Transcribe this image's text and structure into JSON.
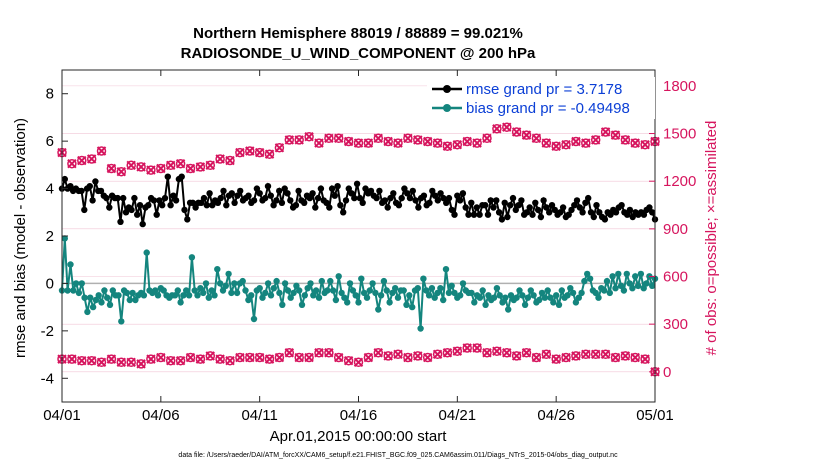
{
  "chart_data": {
    "type": "line",
    "title": "Northern Hemisphere 88019 / 88889 = 99.021%",
    "subtitle": "RADIOSONDE_U_WIND_COMPONENT @ 200 hPa",
    "xlabel": "Apr.01,2015 00:00:00 start",
    "ylabel": "rmse and bias (model - observation)",
    "y2label": "# of obs: o=possible; ×=assimilated",
    "footnote": "data file: /Users/raeder/DAI/ATM_forcXX/CAM6_setup/f.e21.FHIST_BGC.f09_025.CAM6assim.011/Diags_NTrS_2015-04/obs_diag_output.nc",
    "xlim": [
      0,
      30
    ],
    "ylim": [
      -5,
      9
    ],
    "y2lim": [
      -190,
      1900
    ],
    "x_ticks": [
      0,
      5,
      10,
      15,
      20,
      25,
      30
    ],
    "x_tick_labels": [
      "04/01",
      "04/06",
      "04/11",
      "04/16",
      "04/21",
      "04/26",
      "05/01"
    ],
    "y_ticks": [
      -4,
      -2,
      0,
      2,
      4,
      6,
      8
    ],
    "y_tick_labels": [
      "-4",
      "-2",
      "0",
      "2",
      "4",
      "6",
      "8"
    ],
    "y2_ticks": [
      0,
      300,
      600,
      900,
      1200,
      1500,
      1800
    ],
    "y2_tick_labels": [
      "0",
      "300",
      "600",
      "900",
      "1200",
      "1500",
      "1800"
    ],
    "legend": [
      "rmse grand pr = 3.7178",
      "bias grand pr = -0.49498"
    ],
    "legend_position": "top-right",
    "colors": {
      "rmse": "#000000",
      "bias": "#14857e",
      "count": "#d6155e",
      "zero_line": "#b0b0b0"
    },
    "series": [
      {
        "name": "rmse",
        "axis": "left",
        "y_start": 0,
        "y_step": 0.25,
        "values": [
          4.0,
          4.4,
          4.0,
          4.1,
          3.9,
          4.0,
          3.9,
          3.9,
          3.1,
          4.0,
          4.1,
          3.5,
          4.3,
          3.9,
          3.9,
          3.7,
          3.6,
          3.2,
          3.7,
          3.6,
          3.6,
          2.6,
          3.6,
          3.0,
          3.2,
          3.1,
          3.6,
          2.9,
          3.3,
          2.5,
          3.2,
          3.3,
          3.6,
          3.5,
          2.9,
          3.5,
          3.3,
          3.6,
          4.5,
          3.3,
          3.7,
          3.5,
          4.4,
          4.5,
          3.1,
          2.7,
          3.4,
          3.4,
          3.2,
          3.4,
          3.4,
          3.6,
          3.3,
          3.8,
          3.3,
          3.5,
          3.4,
          3.6,
          3.9,
          3.3,
          3.7,
          3.8,
          3.4,
          3.7,
          3.9,
          3.5,
          3.6,
          3.7,
          3.4,
          3.5,
          4.0,
          3.8,
          3.5,
          3.6,
          4.1,
          3.7,
          3.3,
          3.5,
          3.9,
          3.4,
          4.0,
          3.8,
          3.5,
          3.2,
          3.3,
          3.9,
          3.5,
          3.4,
          3.7,
          3.6,
          3.8,
          3.2,
          3.6,
          4.0,
          3.5,
          3.4,
          3.2,
          4.0,
          3.7,
          4.1,
          3.3,
          3.0,
          3.5,
          4.0,
          3.8,
          3.6,
          4.2,
          3.6,
          3.4,
          4.0,
          3.8,
          3.9,
          3.7,
          3.6,
          3.9,
          3.4,
          3.5,
          3.2,
          3.6,
          3.8,
          3.4,
          3.3,
          3.6,
          4.0,
          3.8,
          3.6,
          3.9,
          3.5,
          3.2,
          3.6,
          3.7,
          3.3,
          3.4,
          3.9,
          3.7,
          3.5,
          3.8,
          3.6,
          3.4,
          3.6,
          3.1,
          2.9,
          3.7,
          3.5,
          3.8,
          3.2,
          2.9,
          3.4,
          2.9,
          3.2,
          2.9,
          3.3,
          3.3,
          2.9,
          3.5,
          3.2,
          3.5,
          3.0,
          2.7,
          3.4,
          2.8,
          3.3,
          3.6,
          3.1,
          3.3,
          3.5,
          2.9,
          3.0,
          3.2,
          2.9,
          3.4,
          3.1,
          2.8,
          3.5,
          3.2,
          3.0,
          3.3,
          3.1,
          2.9,
          3.0,
          3.2,
          2.8,
          2.9,
          3.1,
          3.3,
          3.5,
          3.2,
          3.0,
          3.4,
          3.6,
          3.0,
          2.8,
          3.3,
          3.0,
          2.8,
          2.7,
          3.0,
          2.9,
          3.1,
          3.0,
          3.2,
          3.3,
          3.0,
          2.9,
          3.1,
          2.8,
          3.0,
          2.9,
          3.0,
          2.9,
          3.1,
          3.2,
          3.0,
          2.7
        ]
      },
      {
        "name": "bias",
        "axis": "left",
        "y_start": 0,
        "y_step": 0.25,
        "values": [
          -0.3,
          1.9,
          -0.3,
          0.8,
          -0.3,
          0.0,
          -0.4,
          0.0,
          -0.6,
          -1.2,
          -0.6,
          -1.0,
          -0.7,
          -0.5,
          -0.8,
          -0.3,
          -0.6,
          -0.9,
          -0.3,
          -0.5,
          -0.5,
          -1.6,
          -0.3,
          -0.4,
          -0.7,
          -0.4,
          -0.7,
          -0.5,
          -0.4,
          -0.5,
          1.3,
          -0.3,
          -0.4,
          -0.3,
          -0.5,
          -0.2,
          -0.3,
          -0.5,
          -0.6,
          -0.5,
          -0.5,
          -0.3,
          -0.8,
          -0.5,
          -0.3,
          -0.5,
          1.1,
          -0.3,
          -0.5,
          -0.2,
          -0.4,
          0.0,
          -0.6,
          -0.3,
          -0.5,
          0.6,
          0.0,
          -0.3,
          -0.1,
          0.4,
          -0.4,
          0.0,
          -0.4,
          0.0,
          0.1,
          -0.3,
          -0.7,
          -0.5,
          -1.5,
          -0.3,
          -0.2,
          -0.6,
          -0.4,
          0.0,
          -0.5,
          -0.2,
          0.1,
          -0.4,
          -0.9,
          0.0,
          -0.3,
          -0.6,
          -0.4,
          -0.1,
          -0.3,
          -0.9,
          -0.5,
          -0.2,
          0.0,
          -0.5,
          -0.3,
          -0.6,
          0.1,
          -0.4,
          -0.3,
          0.1,
          -0.3,
          -0.7,
          0.3,
          -0.4,
          -0.6,
          -0.8,
          0.0,
          -0.3,
          -0.5,
          -0.8,
          0.2,
          -0.4,
          -0.6,
          -0.3,
          0.0,
          -0.4,
          -1.1,
          -0.5,
          0.1,
          -0.3,
          -0.8,
          -0.4,
          -0.2,
          -0.6,
          -0.3,
          -0.3,
          -0.9,
          -0.5,
          -1.0,
          -0.3,
          -0.2,
          -1.9,
          0.2,
          -0.3,
          -0.5,
          -0.2,
          -0.6,
          -0.4,
          -0.2,
          -0.7,
          0.6,
          -0.4,
          -0.1,
          -0.4,
          -0.6,
          -0.5,
          0.0,
          -0.3,
          -0.4,
          -0.4,
          -0.8,
          -0.5,
          -0.6,
          -0.3,
          -0.9,
          -0.5,
          -0.7,
          -0.6,
          -0.2,
          -0.5,
          -0.8,
          -0.6,
          -1.1,
          -0.5,
          -0.7,
          -0.6,
          -0.3,
          -0.5,
          -0.9,
          -0.6,
          -0.3,
          -0.5,
          -0.8,
          -0.7,
          -0.4,
          -0.6,
          -0.3,
          -0.6,
          -0.8,
          -0.5,
          -0.9,
          -0.3,
          -0.6,
          -0.5,
          -0.2,
          -0.4,
          -0.8,
          -0.6,
          -0.4,
          0.1,
          0.4,
          0.2,
          -0.3,
          -0.4,
          -0.6,
          -0.2,
          -0.3,
          0.1,
          -0.4,
          0.3,
          -0.2,
          0.4,
          -0.1,
          -0.3,
          0.4,
          0.0,
          -0.2,
          0.3,
          -0.1,
          0.4,
          -0.2,
          0.0,
          0.3,
          -0.1,
          0.2
        ]
      },
      {
        "name": "count",
        "axis": "right",
        "x_start": 0,
        "x_step": 0.5,
        "values": [
          1380,
          1310,
          1330,
          1340,
          1390,
          1280,
          1260,
          1300,
          1290,
          1270,
          1280,
          1300,
          1310,
          1280,
          1290,
          1300,
          1340,
          1330,
          1380,
          1390,
          1380,
          1370,
          1410,
          1460,
          1460,
          1480,
          1440,
          1470,
          1470,
          1450,
          1440,
          1440,
          1470,
          1450,
          1440,
          1470,
          1460,
          1450,
          1440,
          1420,
          1430,
          1450,
          1440,
          1470,
          1530,
          1540,
          1510,
          1490,
          1470,
          1440,
          1420,
          1430,
          1450,
          1440,
          1460,
          1510,
          1490,
          1460,
          1440,
          1430,
          1450
        ],
        "values_low": [
          80,
          80,
          70,
          70,
          60,
          80,
          60,
          60,
          50,
          80,
          90,
          70,
          70,
          90,
          80,
          100,
          80,
          70,
          90,
          90,
          90,
          80,
          90,
          120,
          90,
          90,
          120,
          120,
          90,
          70,
          60,
          90,
          120,
          100,
          110,
          90,
          100,
          90,
          110,
          120,
          130,
          150,
          150,
          120,
          130,
          120,
          100,
          120,
          90,
          110,
          80,
          90,
          100,
          110,
          110,
          110,
          90,
          100,
          90,
          80,
          0
        ]
      }
    ]
  }
}
